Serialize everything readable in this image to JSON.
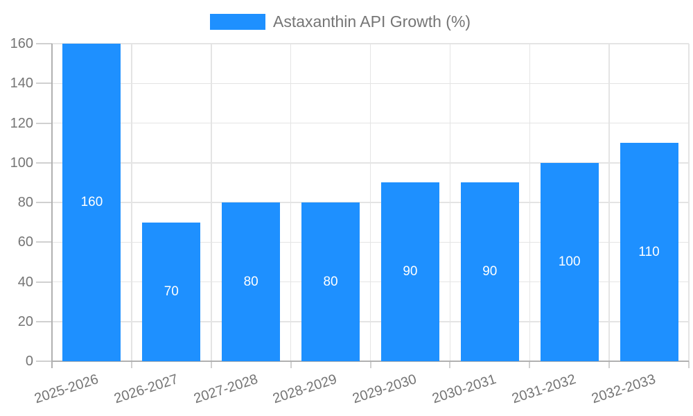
{
  "chart_data": {
    "type": "bar",
    "title": "",
    "categories": [
      "2025-2026",
      "2026-2027",
      "2027-2028",
      "2028-2029",
      "2029-2030",
      "2030-2031",
      "2031-2032",
      "2032-2033"
    ],
    "series": [
      {
        "name": "Astaxanthin API Growth (%)",
        "values": [
          160,
          70,
          80,
          80,
          90,
          90,
          100,
          110
        ]
      }
    ],
    "value_labels": [
      "160",
      "70",
      "80",
      "80",
      "90",
      "90",
      "100",
      "110"
    ],
    "ylim": [
      0,
      160
    ],
    "yticks": [
      0,
      20,
      40,
      60,
      80,
      100,
      120,
      140,
      160
    ],
    "grid": true,
    "legend_position": "top-center",
    "x_label_rotation_deg": -18,
    "colors": {
      "bar": "#1E90FF",
      "value_label": "#FFFFFF",
      "axis_text": "#757575",
      "legend_text": "#757575",
      "gridline": "#E4E4E4",
      "axis_line": "#B0B0B0",
      "tick_line": "#D0D0D0"
    }
  }
}
